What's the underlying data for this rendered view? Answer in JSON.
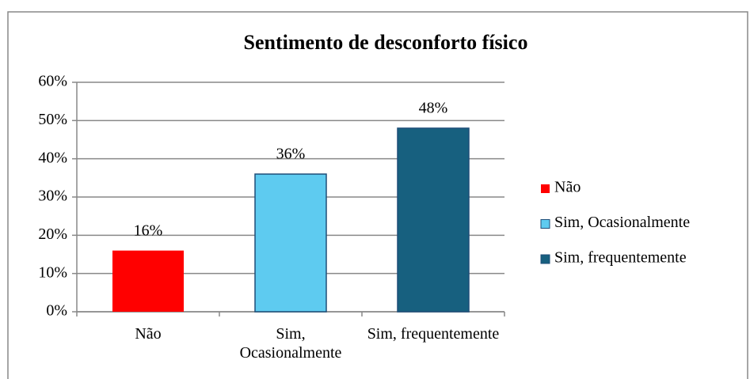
{
  "chart_data": {
    "type": "bar",
    "title": "Sentimento de desconforto físico",
    "categories": [
      "Não",
      "Sim, Ocasionalmente",
      "Sim, frequentemente"
    ],
    "values": [
      16,
      36,
      48
    ],
    "value_labels": [
      "16%",
      "36%",
      "48%"
    ],
    "colors": [
      "#ff0000",
      "#5ecbf0",
      "#17607f"
    ],
    "ylim": [
      0,
      60
    ],
    "yticks": [
      {
        "value": 0,
        "label": "0%"
      },
      {
        "value": 10,
        "label": "10%"
      },
      {
        "value": 20,
        "label": "20%"
      },
      {
        "value": 30,
        "label": "30%"
      },
      {
        "value": 40,
        "label": "40%"
      },
      {
        "value": 50,
        "label": "50%"
      },
      {
        "value": 60,
        "label": "60%"
      }
    ],
    "grid": true,
    "legend": "right"
  }
}
